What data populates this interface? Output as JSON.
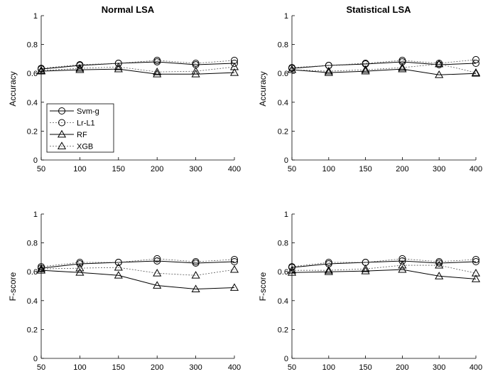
{
  "chart_data": [
    {
      "type": "line",
      "title": "Normal LSA",
      "xlabel": "",
      "ylabel": "Accuracy",
      "categories": [
        "50",
        "100",
        "150",
        "200",
        "300",
        "400"
      ],
      "yticks": [
        "0",
        "0.2",
        "0.4",
        "0.6",
        "0.8",
        "1"
      ],
      "ylim": [
        0,
        1
      ],
      "grid": false,
      "legend_placement": "center-left",
      "series": [
        {
          "name": "Svm-g",
          "marker": "circle",
          "line": "solid",
          "values": [
            0.63,
            0.655,
            0.67,
            0.68,
            0.66,
            0.67
          ]
        },
        {
          "name": "Lr-L1",
          "marker": "circle",
          "line": "dotted",
          "values": [
            0.635,
            0.66,
            0.67,
            0.69,
            0.67,
            0.69
          ]
        },
        {
          "name": "RF",
          "marker": "triangle",
          "line": "solid",
          "values": [
            0.615,
            0.625,
            0.63,
            0.595,
            0.595,
            0.605
          ]
        },
        {
          "name": "XGB",
          "marker": "triangle",
          "line": "dotted",
          "values": [
            0.62,
            0.635,
            0.645,
            0.61,
            0.615,
            0.645
          ]
        }
      ]
    },
    {
      "type": "line",
      "title": "Statistical LSA",
      "xlabel": "",
      "ylabel": "Accuracy",
      "categories": [
        "50",
        "100",
        "150",
        "200",
        "300",
        "400"
      ],
      "yticks": [
        "0",
        "0.2",
        "0.4",
        "0.6",
        "0.8",
        "1"
      ],
      "ylim": [
        0,
        1
      ],
      "grid": false,
      "series": [
        {
          "name": "Svm-g",
          "marker": "circle",
          "line": "solid",
          "values": [
            0.635,
            0.655,
            0.665,
            0.68,
            0.66,
            0.67
          ]
        },
        {
          "name": "Lr-L1",
          "marker": "circle",
          "line": "dotted",
          "values": [
            0.64,
            0.655,
            0.67,
            0.69,
            0.67,
            0.695
          ]
        },
        {
          "name": "RF",
          "marker": "triangle",
          "line": "solid",
          "values": [
            0.625,
            0.605,
            0.615,
            0.63,
            0.59,
            0.6
          ]
        },
        {
          "name": "XGB",
          "marker": "triangle",
          "line": "dotted",
          "values": [
            0.625,
            0.615,
            0.625,
            0.64,
            0.665,
            0.605
          ]
        }
      ]
    },
    {
      "type": "line",
      "title": "",
      "xlabel": "",
      "ylabel": "F-score",
      "categories": [
        "50",
        "100",
        "150",
        "200",
        "300",
        "400"
      ],
      "yticks": [
        "0",
        "0.2",
        "0.4",
        "0.6",
        "0.8",
        "1"
      ],
      "ylim": [
        0,
        1
      ],
      "grid": false,
      "series": [
        {
          "name": "Svm-g",
          "marker": "circle",
          "line": "solid",
          "values": [
            0.625,
            0.655,
            0.665,
            0.675,
            0.66,
            0.67
          ]
        },
        {
          "name": "Lr-L1",
          "marker": "circle",
          "line": "dotted",
          "values": [
            0.635,
            0.665,
            0.665,
            0.69,
            0.67,
            0.685
          ]
        },
        {
          "name": "RF",
          "marker": "triangle",
          "line": "solid",
          "values": [
            0.61,
            0.595,
            0.575,
            0.505,
            0.48,
            0.49
          ]
        },
        {
          "name": "XGB",
          "marker": "triangle",
          "line": "dotted",
          "values": [
            0.62,
            0.625,
            0.63,
            0.59,
            0.575,
            0.615
          ]
        }
      ]
    },
    {
      "type": "line",
      "title": "",
      "xlabel": "",
      "ylabel": "F-score",
      "categories": [
        "50",
        "100",
        "150",
        "200",
        "300",
        "400"
      ],
      "yticks": [
        "0",
        "0.2",
        "0.4",
        "0.6",
        "0.8",
        "1"
      ],
      "ylim": [
        0,
        1
      ],
      "grid": false,
      "series": [
        {
          "name": "Svm-g",
          "marker": "circle",
          "line": "solid",
          "values": [
            0.63,
            0.655,
            0.665,
            0.675,
            0.66,
            0.67
          ]
        },
        {
          "name": "Lr-L1",
          "marker": "circle",
          "line": "dotted",
          "values": [
            0.635,
            0.665,
            0.665,
            0.69,
            0.67,
            0.685
          ]
        },
        {
          "name": "RF",
          "marker": "triangle",
          "line": "solid",
          "values": [
            0.595,
            0.6,
            0.605,
            0.615,
            0.57,
            0.55
          ]
        },
        {
          "name": "XGB",
          "marker": "triangle",
          "line": "dotted",
          "values": [
            0.61,
            0.61,
            0.62,
            0.645,
            0.645,
            0.59
          ]
        }
      ]
    }
  ]
}
